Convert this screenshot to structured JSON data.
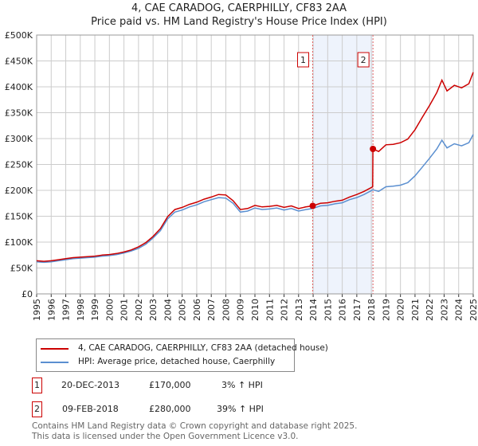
{
  "chart_data": {
    "type": "line",
    "title": "4, CAE CARADOG, CAERPHILLY, CF83 2AA",
    "subtitle": "Price paid vs. HM Land Registry's House Price Index (HPI)",
    "xlim": [
      1995,
      2025
    ],
    "ylim": [
      0,
      500000
    ],
    "y_ticks": [
      0,
      50000,
      100000,
      150000,
      200000,
      250000,
      300000,
      350000,
      400000,
      450000,
      500000
    ],
    "y_tick_labels": [
      "£0",
      "£50K",
      "£100K",
      "£150K",
      "£200K",
      "£250K",
      "£300K",
      "£350K",
      "£400K",
      "£450K",
      "£500K"
    ],
    "x_ticks": [
      1995,
      1996,
      1997,
      1998,
      1999,
      2000,
      2001,
      2002,
      2003,
      2004,
      2005,
      2006,
      2007,
      2008,
      2009,
      2010,
      2011,
      2012,
      2013,
      2014,
      2015,
      2016,
      2017,
      2018,
      2019,
      2020,
      2021,
      2022,
      2023,
      2024,
      2025
    ],
    "grid": true,
    "colors": {
      "property": "#cc0000",
      "hpi": "#5b8fd0",
      "shade": "#eef3fc"
    },
    "shaded_range": [
      2013.97,
      2018.11
    ],
    "series": [
      {
        "name": "4, CAE CARADOG, CAERPHILLY, CF83 2AA (detached house)",
        "color": "#cc0000",
        "points": [
          [
            1995,
            64
          ],
          [
            1995.5,
            63
          ],
          [
            1996,
            64
          ],
          [
            1996.5,
            66
          ],
          [
            1997,
            68
          ],
          [
            1997.5,
            70
          ],
          [
            1998,
            71
          ],
          [
            1998.5,
            72
          ],
          [
            1999,
            73
          ],
          [
            1999.5,
            75
          ],
          [
            2000,
            76
          ],
          [
            2000.5,
            78
          ],
          [
            2001,
            81
          ],
          [
            2001.5,
            85
          ],
          [
            2002,
            91
          ],
          [
            2002.5,
            99
          ],
          [
            2003,
            111
          ],
          [
            2003.5,
            126
          ],
          [
            2004,
            149
          ],
          [
            2004.5,
            163
          ],
          [
            2005,
            167
          ],
          [
            2005.5,
            173
          ],
          [
            2006,
            177
          ],
          [
            2006.5,
            183
          ],
          [
            2007,
            187
          ],
          [
            2007.5,
            192
          ],
          [
            2008,
            191
          ],
          [
            2008.5,
            180
          ],
          [
            2009,
            163
          ],
          [
            2009.5,
            165
          ],
          [
            2010,
            171
          ],
          [
            2010.5,
            168
          ],
          [
            2011,
            169
          ],
          [
            2011.5,
            171
          ],
          [
            2012,
            167
          ],
          [
            2012.5,
            170
          ],
          [
            2013,
            165
          ],
          [
            2013.5,
            168
          ],
          [
            2013.97,
            170
          ],
          [
            2014.5,
            175
          ],
          [
            2015,
            176
          ],
          [
            2015.5,
            179
          ],
          [
            2016,
            181
          ],
          [
            2016.5,
            187
          ],
          [
            2017,
            192
          ],
          [
            2017.5,
            198
          ],
          [
            2018.09,
            207
          ],
          [
            2018.11,
            280
          ],
          [
            2018.5,
            275
          ],
          [
            2019,
            288
          ],
          [
            2019.5,
            289
          ],
          [
            2020,
            292
          ],
          [
            2020.5,
            299
          ],
          [
            2021,
            317
          ],
          [
            2021.5,
            341
          ],
          [
            2022,
            364
          ],
          [
            2022.5,
            389
          ],
          [
            2022.85,
            413
          ],
          [
            2023.2,
            392
          ],
          [
            2023.7,
            403
          ],
          [
            2024.2,
            398
          ],
          [
            2024.7,
            406
          ],
          [
            2025,
            428
          ]
        ]
      },
      {
        "name": "HPI: Average price, detached house, Caerphilly",
        "color": "#5b8fd0",
        "points": [
          [
            1995,
            62
          ],
          [
            1995.5,
            61
          ],
          [
            1996,
            62
          ],
          [
            1996.5,
            64
          ],
          [
            1997,
            66
          ],
          [
            1997.5,
            68
          ],
          [
            1998,
            69
          ],
          [
            1998.5,
            70
          ],
          [
            1999,
            71
          ],
          [
            1999.5,
            73
          ],
          [
            2000,
            74
          ],
          [
            2000.5,
            76
          ],
          [
            2001,
            79
          ],
          [
            2001.5,
            83
          ],
          [
            2002,
            88
          ],
          [
            2002.5,
            96
          ],
          [
            2003,
            108
          ],
          [
            2003.5,
            122
          ],
          [
            2004,
            145
          ],
          [
            2004.5,
            158
          ],
          [
            2005,
            162
          ],
          [
            2005.5,
            168
          ],
          [
            2006,
            172
          ],
          [
            2006.5,
            178
          ],
          [
            2007,
            182
          ],
          [
            2007.5,
            186
          ],
          [
            2008,
            185
          ],
          [
            2008.5,
            175
          ],
          [
            2009,
            158
          ],
          [
            2009.5,
            160
          ],
          [
            2010,
            166
          ],
          [
            2010.5,
            163
          ],
          [
            2011,
            164
          ],
          [
            2011.5,
            166
          ],
          [
            2012,
            162
          ],
          [
            2012.5,
            165
          ],
          [
            2013,
            160
          ],
          [
            2013.5,
            163
          ],
          [
            2013.97,
            165
          ],
          [
            2014.5,
            170
          ],
          [
            2015,
            171
          ],
          [
            2015.5,
            174
          ],
          [
            2016,
            176
          ],
          [
            2016.5,
            182
          ],
          [
            2017,
            186
          ],
          [
            2017.5,
            192
          ],
          [
            2018.11,
            201
          ],
          [
            2018.5,
            198
          ],
          [
            2019,
            207
          ],
          [
            2019.5,
            208
          ],
          [
            2020,
            210
          ],
          [
            2020.5,
            215
          ],
          [
            2021,
            228
          ],
          [
            2021.5,
            245
          ],
          [
            2022,
            262
          ],
          [
            2022.5,
            280
          ],
          [
            2022.85,
            297
          ],
          [
            2023.2,
            282
          ],
          [
            2023.7,
            290
          ],
          [
            2024.2,
            286
          ],
          [
            2024.7,
            292
          ],
          [
            2025,
            308
          ]
        ]
      }
    ],
    "value_unit": "thousand GBP",
    "sales": [
      {
        "label": "1",
        "year": 2013.97,
        "value": 170
      },
      {
        "label": "2",
        "year": 2018.11,
        "value": 280
      }
    ]
  },
  "legend": {
    "property": "4, CAE CARADOG, CAERPHILLY, CF83 2AA (detached house)",
    "hpi": "HPI: Average price, detached house, Caerphilly"
  },
  "transactions": [
    {
      "num": "1",
      "date": "20-DEC-2013",
      "price": "£170,000",
      "hpi": "3% ↑ HPI"
    },
    {
      "num": "2",
      "date": "09-FEB-2018",
      "price": "£280,000",
      "hpi": "39% ↑ HPI"
    }
  ],
  "footer": {
    "line1": "Contains HM Land Registry data © Crown copyright and database right 2025.",
    "line2": "This data is licensed under the Open Government Licence v3.0."
  }
}
